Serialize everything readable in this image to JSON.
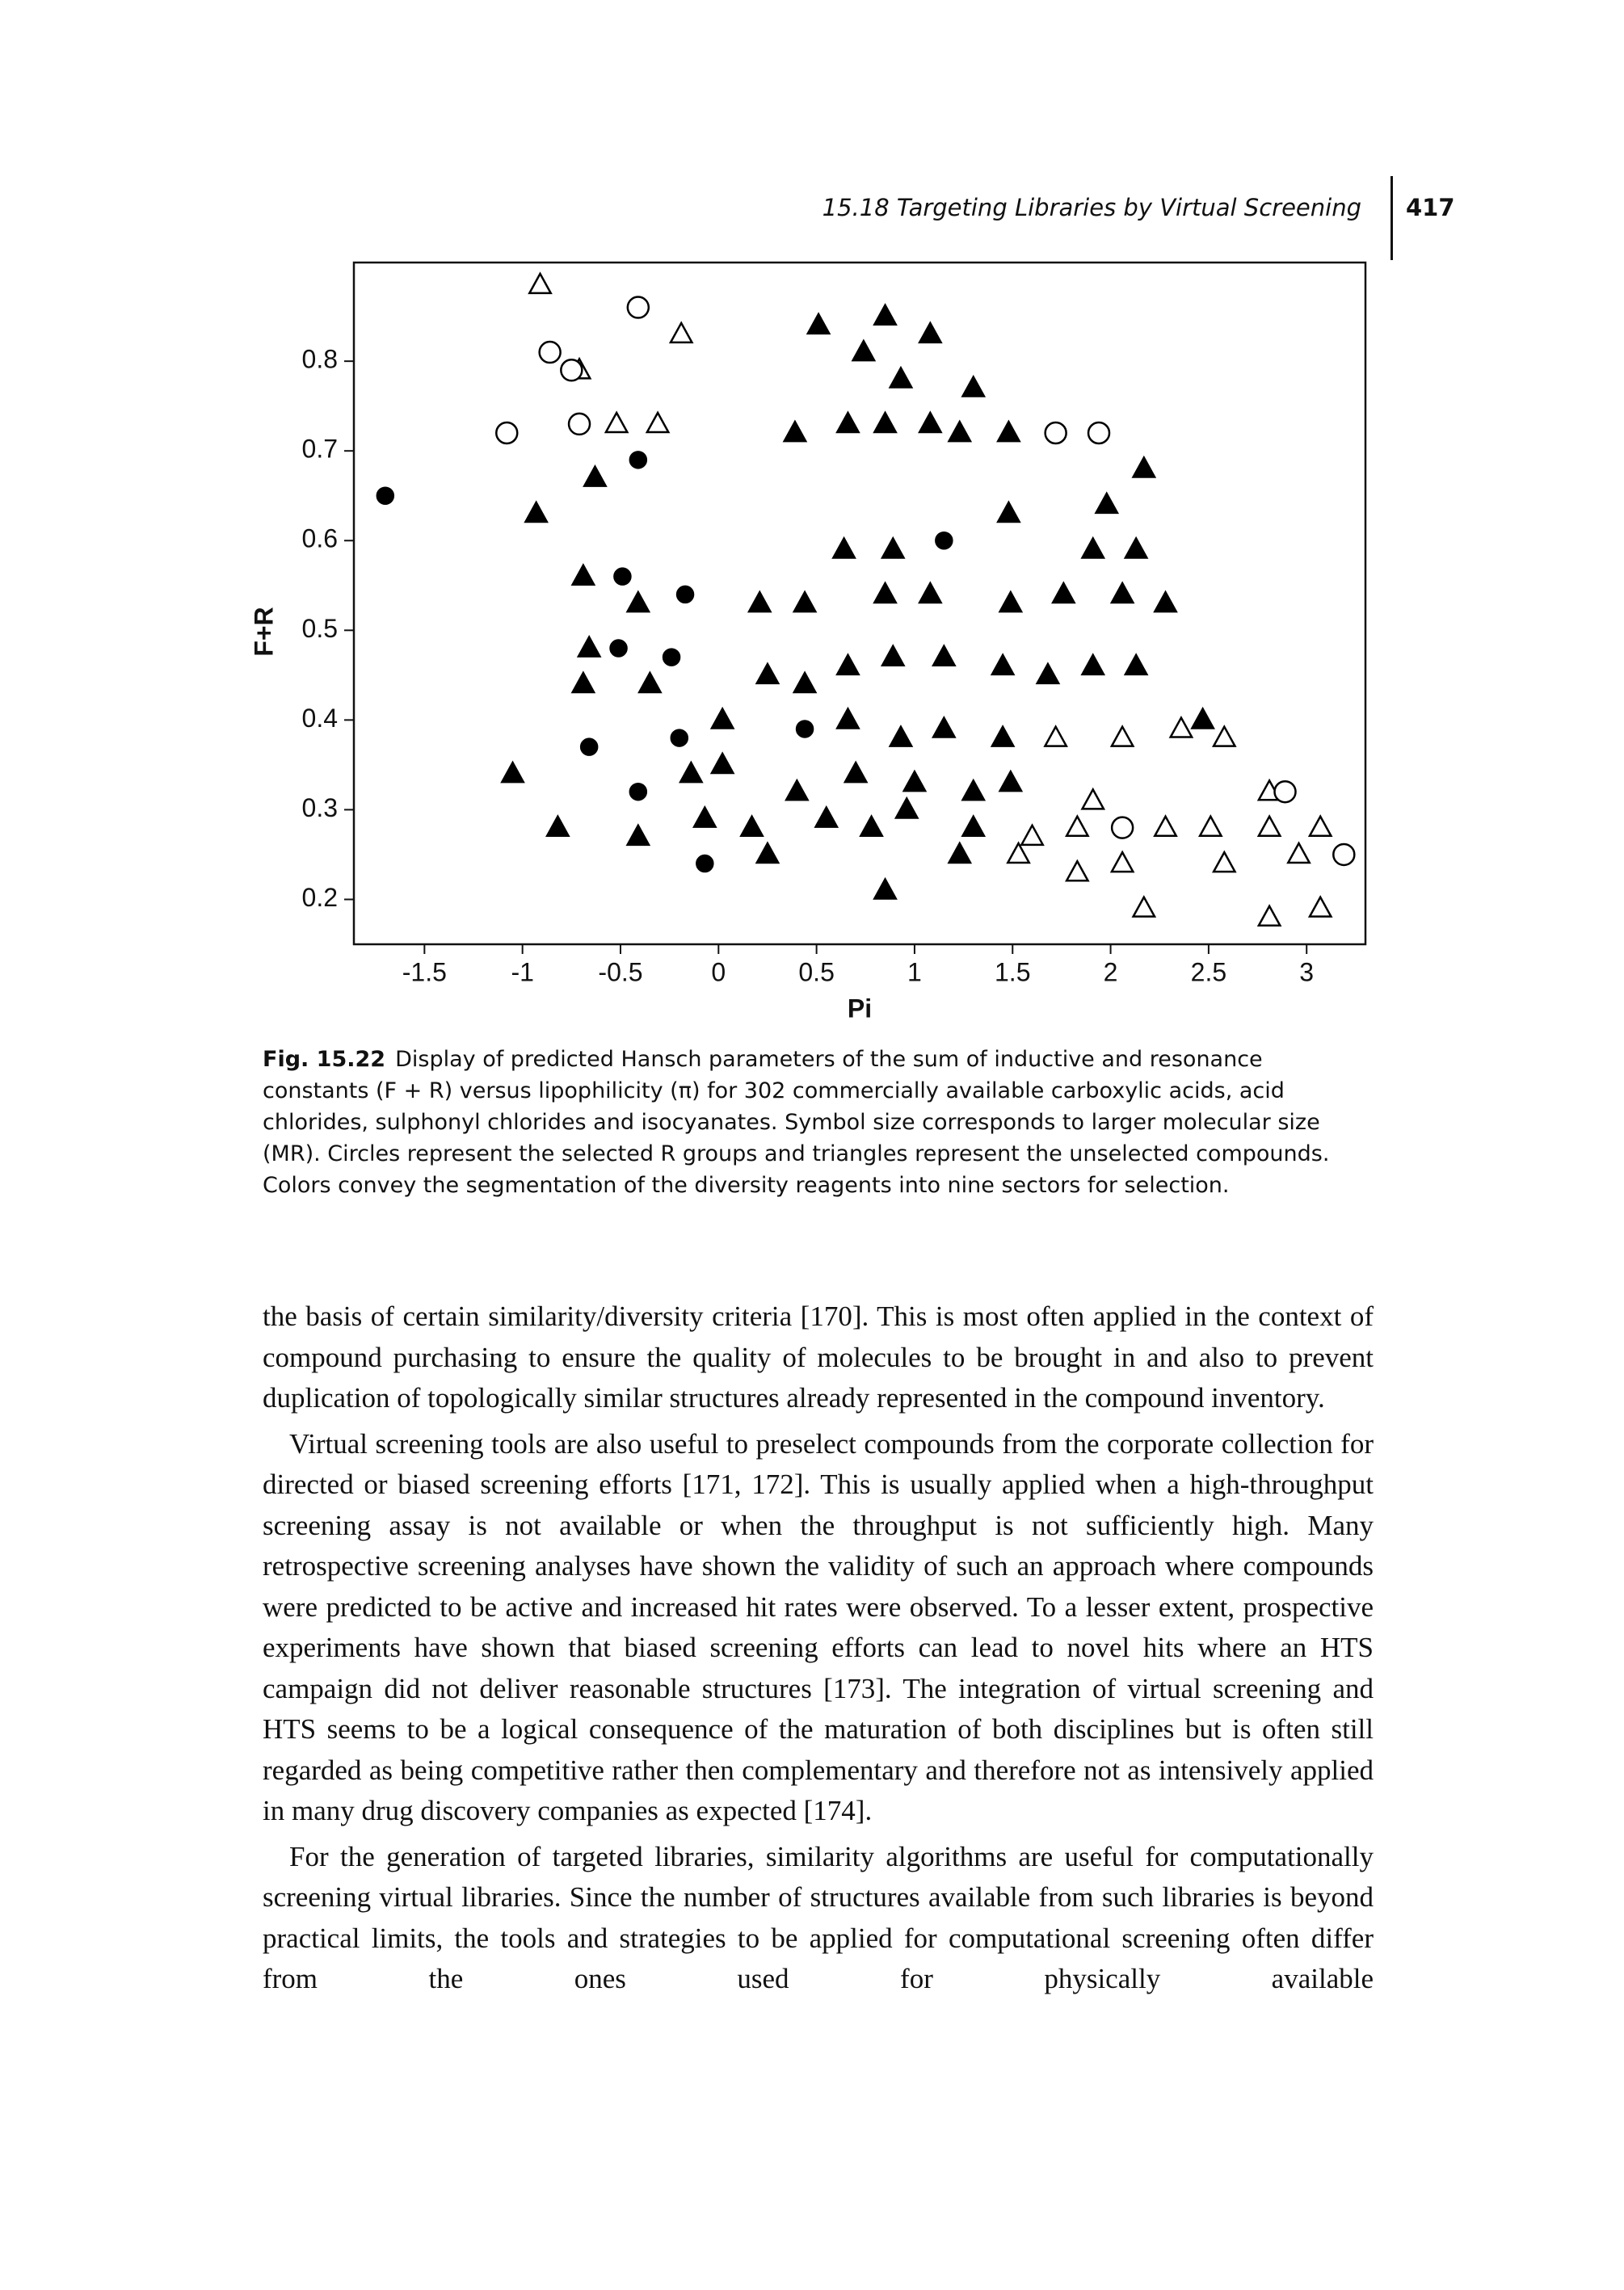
{
  "header": {
    "section": "15.18 Targeting Libraries by Virtual Screening",
    "page_number": "417"
  },
  "chart_data": {
    "type": "scatter",
    "xlabel": "Pi",
    "ylabel": "F+R",
    "xlim": [
      -1.86,
      3.3
    ],
    "ylim": [
      0.15,
      0.91
    ],
    "xticks": [
      -1.5,
      -1,
      -0.5,
      0,
      0.5,
      1,
      1.5,
      2,
      2.5,
      3
    ],
    "yticks": [
      0.2,
      0.3,
      0.4,
      0.5,
      0.6,
      0.7,
      0.8
    ],
    "color": "#000000",
    "series": [
      {
        "marker": "triangle",
        "filled": true,
        "x": [
          -0.93,
          -0.63,
          0.51,
          0.85,
          1.08,
          0.74,
          0.93,
          1.3,
          0.39,
          0.66,
          0.85,
          1.08,
          1.23,
          1.48,
          2.17,
          1.98,
          2.13,
          1.91,
          1.48,
          0.64,
          0.89,
          -0.69,
          -0.41,
          0.21,
          0.44,
          0.85,
          1.08,
          1.49,
          1.76,
          2.06,
          2.28,
          -0.66,
          -0.35,
          0.25,
          0.44,
          0.66,
          0.89,
          1.15,
          1.45,
          1.68,
          1.91,
          2.13,
          -0.69,
          0.02,
          0.66,
          0.93,
          1.15,
          1.45,
          2.47,
          -1.05,
          -0.14,
          0.02,
          0.4,
          0.7,
          1.0,
          1.3,
          1.49,
          -0.82,
          -0.41,
          -0.07,
          0.17,
          0.55,
          0.78,
          0.96,
          1.3,
          0.25,
          1.23,
          0.85
        ],
        "y": [
          0.63,
          0.67,
          0.84,
          0.85,
          0.83,
          0.81,
          0.78,
          0.77,
          0.72,
          0.73,
          0.73,
          0.73,
          0.72,
          0.72,
          0.68,
          0.64,
          0.59,
          0.59,
          0.63,
          0.59,
          0.59,
          0.56,
          0.53,
          0.53,
          0.53,
          0.54,
          0.54,
          0.53,
          0.54,
          0.54,
          0.53,
          0.48,
          0.44,
          0.45,
          0.44,
          0.46,
          0.47,
          0.47,
          0.46,
          0.45,
          0.46,
          0.46,
          0.44,
          0.4,
          0.4,
          0.38,
          0.39,
          0.38,
          0.4,
          0.34,
          0.34,
          0.35,
          0.32,
          0.34,
          0.33,
          0.32,
          0.33,
          0.28,
          0.27,
          0.29,
          0.28,
          0.29,
          0.28,
          0.3,
          0.28,
          0.25,
          0.25,
          0.21
        ]
      },
      {
        "marker": "triangle",
        "filled": false,
        "x": [
          -0.91,
          -0.19,
          -0.71,
          -0.52,
          -0.31,
          1.72,
          2.06,
          2.36,
          2.58,
          1.91,
          2.81,
          1.6,
          1.83,
          2.28,
          2.51,
          2.81,
          3.07,
          1.53,
          1.83,
          2.06,
          2.58,
          2.96,
          2.17,
          2.81,
          3.07
        ],
        "y": [
          0.885,
          0.83,
          0.79,
          0.73,
          0.73,
          0.38,
          0.38,
          0.39,
          0.38,
          0.31,
          0.32,
          0.27,
          0.28,
          0.28,
          0.28,
          0.28,
          0.28,
          0.25,
          0.23,
          0.24,
          0.24,
          0.25,
          0.19,
          0.18,
          0.19
        ]
      },
      {
        "marker": "circle",
        "filled": true,
        "x": [
          -1.7,
          -0.41,
          1.15,
          -0.49,
          -0.17,
          -0.51,
          -0.24,
          -0.66,
          -0.2,
          0.44,
          -0.41,
          -0.07
        ],
        "y": [
          0.65,
          0.69,
          0.6,
          0.56,
          0.54,
          0.48,
          0.47,
          0.37,
          0.38,
          0.39,
          0.32,
          0.24
        ]
      },
      {
        "marker": "circle",
        "filled": false,
        "x": [
          -0.41,
          -0.86,
          -0.75,
          -1.08,
          -0.71,
          1.72,
          1.94,
          2.06,
          3.19,
          2.89
        ],
        "y": [
          0.86,
          0.81,
          0.79,
          0.72,
          0.73,
          0.72,
          0.72,
          0.28,
          0.25,
          0.32
        ]
      }
    ]
  },
  "caption": {
    "label": "Fig. 15.22",
    "text": "Display of predicted Hansch parameters of the sum of inductive and resonance constants (F + R) versus lipophilicity (π) for 302 commercially available carboxylic acids, acid chlorides, sulphonyl chlorides and isocyanates. Symbol size corresponds to larger molecular size (MR). Circles represent the selected R groups and triangles represent the unselected compounds. Colors convey the segmentation of the diversity reagents into nine sectors for selection."
  },
  "body": {
    "paragraphs": [
      "the basis of certain similarity/diversity criteria [170]. This is most often applied in the context of compound purchasing to ensure the quality of molecules to be brought in and also to prevent duplication of topologically similar structures already represented in the compound inventory.",
      "Virtual screening tools are also useful to preselect compounds from the corporate collection for directed or biased screening efforts [171, 172]. This is usually applied when a high-throughput screening assay is not available or when the throughput is not sufficiently high. Many retrospective screening analyses have shown the validity of such an approach where compounds were predicted to be active and increased hit rates were observed. To a lesser extent, prospective experiments have shown that biased screening efforts can lead to novel hits where an HTS campaign did not deliver reasonable structures [173]. The integration of virtual screening and HTS seems to be a logical consequence of the maturation of both disciplines but is often still regarded as being competitive rather then complementary and therefore not as intensively applied in many drug discovery companies as expected [174].",
      "For the generation of targeted libraries, similarity algorithms are useful for computationally screening virtual libraries. Since the number of structures available from such libraries is beyond practical limits, the tools and strategies to be applied for computational screening often differ from the ones used for physically available"
    ]
  }
}
